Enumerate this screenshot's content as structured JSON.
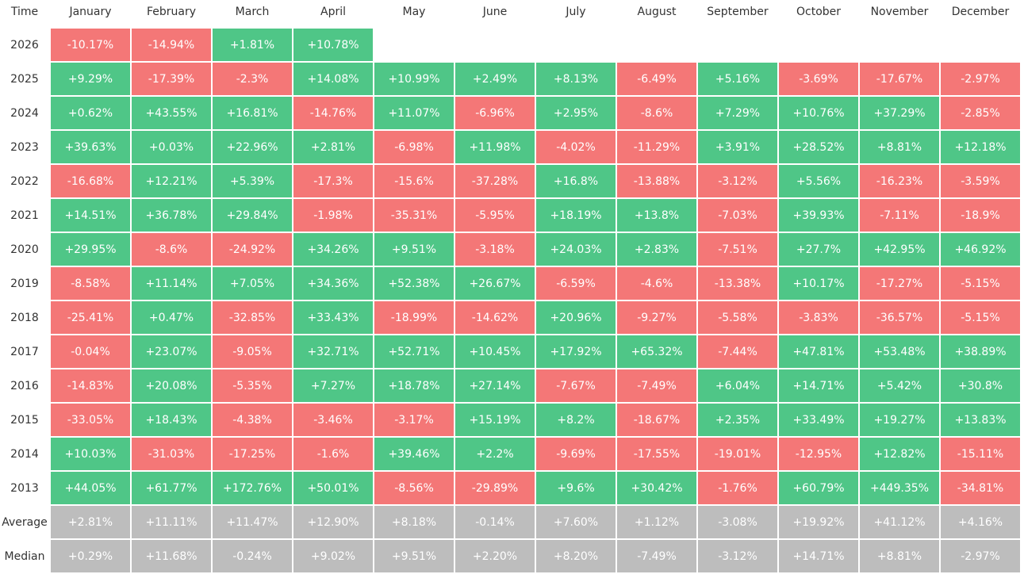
{
  "table": {
    "header": [
      "Time",
      "January",
      "February",
      "March",
      "April",
      "May",
      "June",
      "July",
      "August",
      "September",
      "October",
      "November",
      "December"
    ],
    "rows": [
      {
        "label": "2026",
        "cells": [
          "-10.17%",
          "-14.94%",
          "+1.81%",
          "+10.78%"
        ]
      },
      {
        "label": "2025",
        "cells": [
          "+9.29%",
          "-17.39%",
          "-2.3%",
          "+14.08%",
          "+10.99%",
          "+2.49%",
          "+8.13%",
          "-6.49%",
          "+5.16%",
          "-3.69%",
          "-17.67%",
          "-2.97%"
        ]
      },
      {
        "label": "2024",
        "cells": [
          "+0.62%",
          "+43.55%",
          "+16.81%",
          "-14.76%",
          "+11.07%",
          "-6.96%",
          "+2.95%",
          "-8.6%",
          "+7.29%",
          "+10.76%",
          "+37.29%",
          "-2.85%"
        ]
      },
      {
        "label": "2023",
        "cells": [
          "+39.63%",
          "+0.03%",
          "+22.96%",
          "+2.81%",
          "-6.98%",
          "+11.98%",
          "-4.02%",
          "-11.29%",
          "+3.91%",
          "+28.52%",
          "+8.81%",
          "+12.18%"
        ]
      },
      {
        "label": "2022",
        "cells": [
          "-16.68%",
          "+12.21%",
          "+5.39%",
          "-17.3%",
          "-15.6%",
          "-37.28%",
          "+16.8%",
          "-13.88%",
          "-3.12%",
          "+5.56%",
          "-16.23%",
          "-3.59%"
        ]
      },
      {
        "label": "2021",
        "cells": [
          "+14.51%",
          "+36.78%",
          "+29.84%",
          "-1.98%",
          "-35.31%",
          "-5.95%",
          "+18.19%",
          "+13.8%",
          "-7.03%",
          "+39.93%",
          "-7.11%",
          "-18.9%"
        ]
      },
      {
        "label": "2020",
        "cells": [
          "+29.95%",
          "-8.6%",
          "-24.92%",
          "+34.26%",
          "+9.51%",
          "-3.18%",
          "+24.03%",
          "+2.83%",
          "-7.51%",
          "+27.7%",
          "+42.95%",
          "+46.92%"
        ]
      },
      {
        "label": "2019",
        "cells": [
          "-8.58%",
          "+11.14%",
          "+7.05%",
          "+34.36%",
          "+52.38%",
          "+26.67%",
          "-6.59%",
          "-4.6%",
          "-13.38%",
          "+10.17%",
          "-17.27%",
          "-5.15%"
        ]
      },
      {
        "label": "2018",
        "cells": [
          "-25.41%",
          "+0.47%",
          "-32.85%",
          "+33.43%",
          "-18.99%",
          "-14.62%",
          "+20.96%",
          "-9.27%",
          "-5.58%",
          "-3.83%",
          "-36.57%",
          "-5.15%"
        ]
      },
      {
        "label": "2017",
        "cells": [
          "-0.04%",
          "+23.07%",
          "-9.05%",
          "+32.71%",
          "+52.71%",
          "+10.45%",
          "+17.92%",
          "+65.32%",
          "-7.44%",
          "+47.81%",
          "+53.48%",
          "+38.89%"
        ]
      },
      {
        "label": "2016",
        "cells": [
          "-14.83%",
          "+20.08%",
          "-5.35%",
          "+7.27%",
          "+18.78%",
          "+27.14%",
          "-7.67%",
          "-7.49%",
          "+6.04%",
          "+14.71%",
          "+5.42%",
          "+30.8%"
        ]
      },
      {
        "label": "2015",
        "cells": [
          "-33.05%",
          "+18.43%",
          "-4.38%",
          "-3.46%",
          "-3.17%",
          "+15.19%",
          "+8.2%",
          "-18.67%",
          "+2.35%",
          "+33.49%",
          "+19.27%",
          "+13.83%"
        ]
      },
      {
        "label": "2014",
        "cells": [
          "+10.03%",
          "-31.03%",
          "-17.25%",
          "-1.6%",
          "+39.46%",
          "+2.2%",
          "-9.69%",
          "-17.55%",
          "-19.01%",
          "-12.95%",
          "+12.82%",
          "-15.11%"
        ]
      },
      {
        "label": "2013",
        "cells": [
          "+44.05%",
          "+61.77%",
          "+172.76%",
          "+50.01%",
          "-8.56%",
          "-29.89%",
          "+9.6%",
          "+30.42%",
          "-1.76%",
          "+60.79%",
          "+449.35%",
          "-34.81%"
        ]
      }
    ],
    "summary_rows": [
      {
        "label": "Average",
        "cells": [
          "+2.81%",
          "+11.11%",
          "+11.47%",
          "+12.90%",
          "+8.18%",
          "-0.14%",
          "+7.60%",
          "+1.12%",
          "-3.08%",
          "+19.92%",
          "+41.12%",
          "+4.16%"
        ]
      },
      {
        "label": "Median",
        "cells": [
          "+0.29%",
          "+11.68%",
          "-0.24%",
          "+9.02%",
          "+9.51%",
          "+2.20%",
          "+8.20%",
          "-7.49%",
          "-3.12%",
          "+14.71%",
          "+8.81%",
          "-2.97%"
        ]
      }
    ]
  }
}
